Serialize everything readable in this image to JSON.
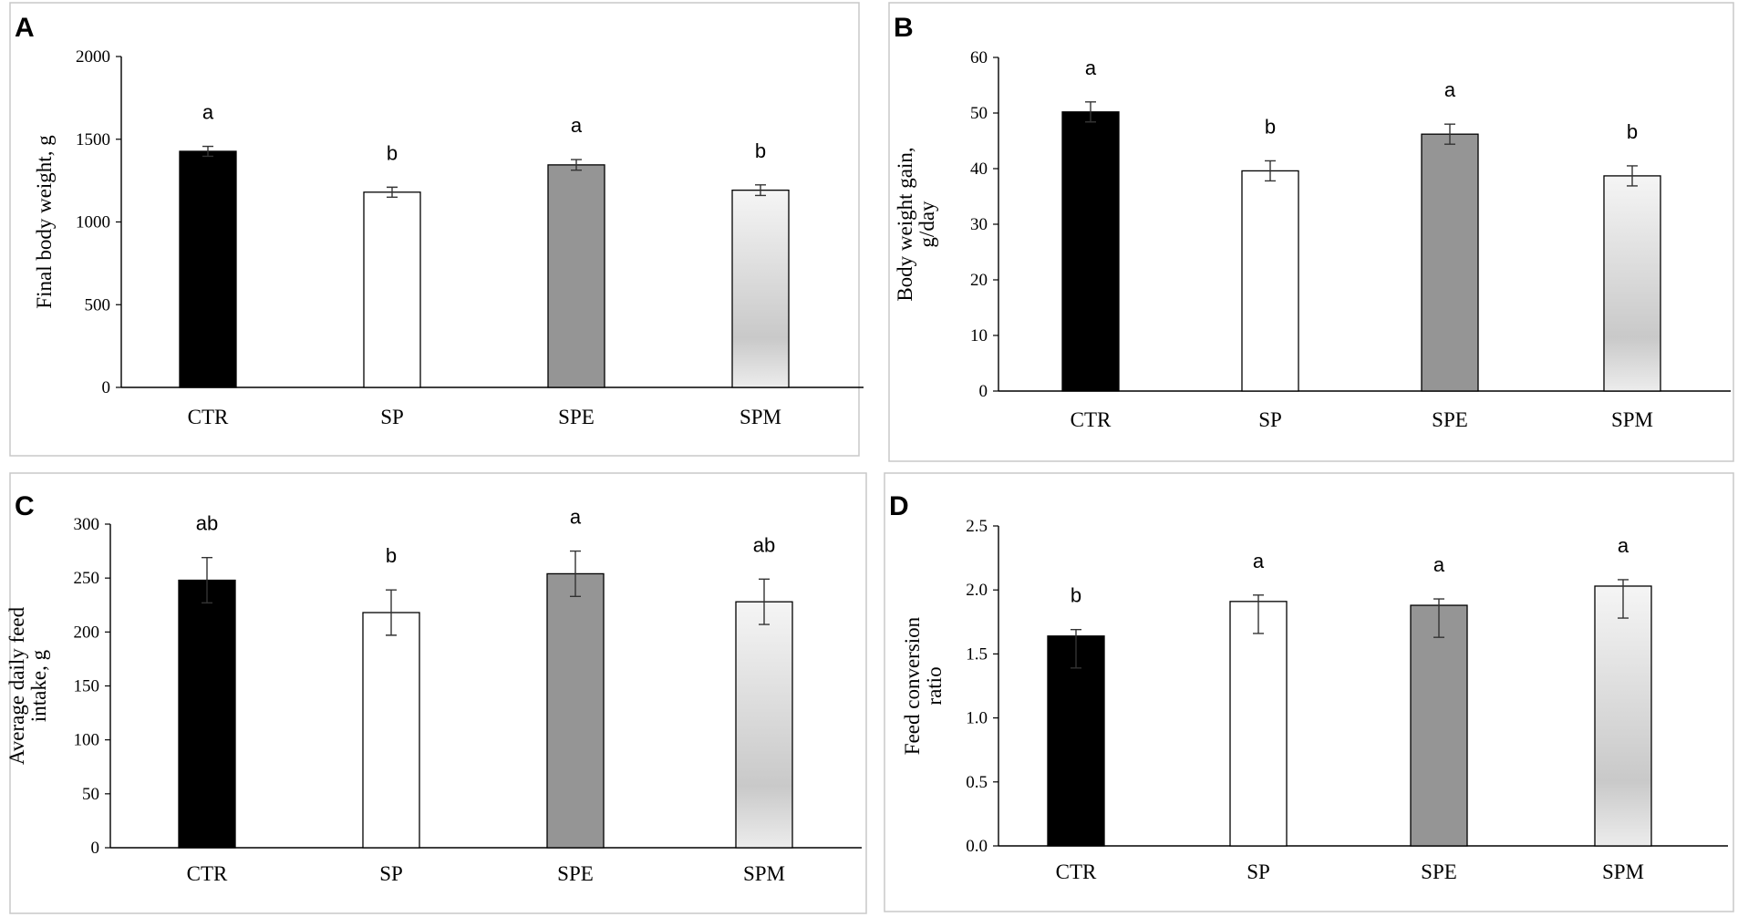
{
  "colors": {
    "CTR": "#000000",
    "SP": "#ffffff",
    "SPE": "#959595",
    "SPM": "url(#spmGrad)"
  },
  "chart_data": [
    {
      "panel": "A",
      "type": "bar",
      "categories": [
        "CTR",
        "SP",
        "SPE",
        "SPM"
      ],
      "values": [
        1427,
        1180,
        1345,
        1192
      ],
      "errors": [
        30,
        30,
        32,
        32
      ],
      "letters": [
        "a",
        "b",
        "a",
        "b"
      ],
      "ylabel_lines": [
        "Final body weight, g"
      ],
      "ylim": [
        0,
        2000
      ],
      "yticks": [
        0,
        500,
        1000,
        1500,
        2000
      ],
      "ytick_labels": [
        "0",
        "500",
        "1000",
        "1500",
        "2000"
      ]
    },
    {
      "panel": "B",
      "type": "bar",
      "categories": [
        "CTR",
        "SP",
        "SPE",
        "SPM"
      ],
      "values": [
        50.2,
        39.6,
        46.2,
        38.7
      ],
      "errors": [
        1.8,
        1.8,
        1.8,
        1.8
      ],
      "letters": [
        "a",
        "b",
        "a",
        "b"
      ],
      "ylabel_lines": [
        "Body weight gain,",
        "g/day"
      ],
      "ylim": [
        0,
        60
      ],
      "yticks": [
        0,
        10,
        20,
        30,
        40,
        50,
        60
      ],
      "ytick_labels": [
        "0",
        "10",
        "20",
        "30",
        "40",
        "50",
        "60"
      ]
    },
    {
      "panel": "C",
      "type": "bar",
      "categories": [
        "CTR",
        "SP",
        "SPE",
        "SPM"
      ],
      "values": [
        248,
        218,
        254,
        228
      ],
      "errors": [
        21,
        21,
        21,
        21
      ],
      "letters": [
        "ab",
        "b",
        "a",
        "ab"
      ],
      "ylabel_lines": [
        "Average daily feed",
        "intake, g"
      ],
      "ylim": [
        0,
        300
      ],
      "yticks": [
        0,
        50,
        100,
        150,
        200,
        250,
        300
      ],
      "ytick_labels": [
        "0",
        "50",
        "100",
        "150",
        "200",
        "250",
        "300"
      ]
    },
    {
      "panel": "D",
      "type": "bar",
      "categories": [
        "CTR",
        "SP",
        "SPE",
        "SPM"
      ],
      "values": [
        1.64,
        1.91,
        1.88,
        2.03
      ],
      "errors_up": [
        0.05,
        0.05,
        0.05,
        0.05
      ],
      "errors_down": [
        0.25,
        0.25,
        0.25,
        0.25
      ],
      "letters": [
        "b",
        "a",
        "a",
        "a"
      ],
      "ylabel_lines": [
        "Feed conversion",
        "ratio"
      ],
      "ylim": [
        0,
        2.5
      ],
      "yticks": [
        0,
        0.5,
        1.0,
        1.5,
        2.0,
        2.5
      ],
      "ytick_labels": [
        "0.0",
        "0.5",
        "1.0",
        "1.5",
        "2.0",
        "2.5"
      ]
    }
  ]
}
